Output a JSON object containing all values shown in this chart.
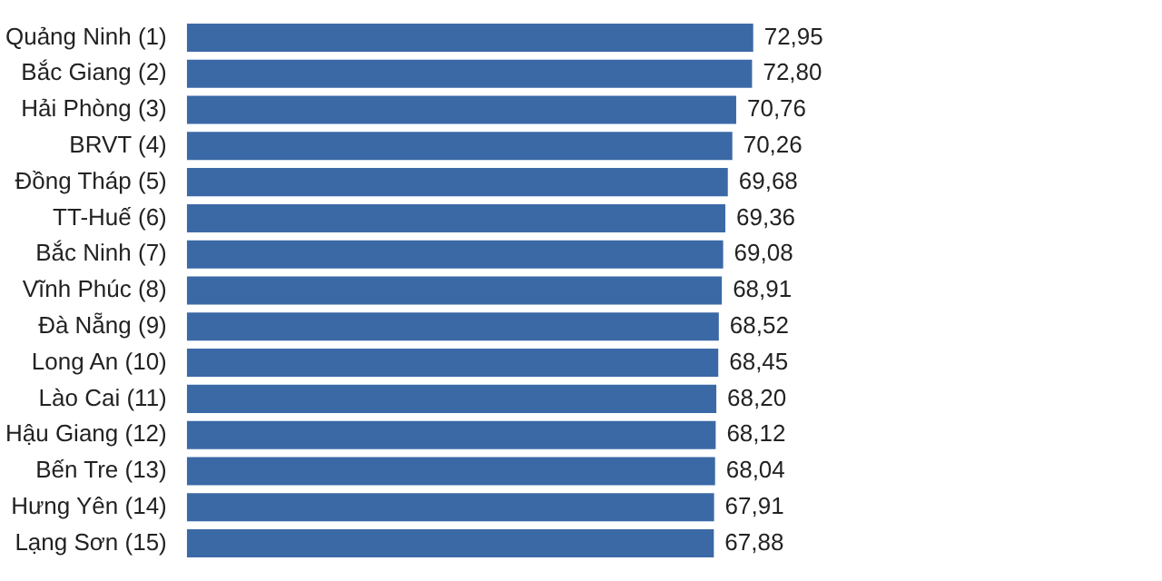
{
  "chart_data": {
    "type": "bar",
    "orientation": "horizontal",
    "categories": [
      "Quảng Ninh (1)",
      "Bắc Giang (2)",
      "Hải Phòng (3)",
      "BRVT (4)",
      "Đồng Tháp (5)",
      "TT-Huế (6)",
      "Bắc Ninh (7)",
      "Vĩnh Phúc (8)",
      "Đà Nẵng (9)",
      "Long An (10)",
      "Lào Cai (11)",
      "Hậu Giang (12)",
      "Bến Tre (13)",
      "Hưng Yên (14)",
      "Lạng Sơn (15)"
    ],
    "values": [
      72.95,
      72.8,
      70.76,
      70.26,
      69.68,
      69.36,
      69.08,
      68.91,
      68.52,
      68.45,
      68.2,
      68.12,
      68.04,
      67.91,
      67.88
    ],
    "value_labels": [
      "72,95",
      "72,80",
      "70,76",
      "70,26",
      "69,68",
      "69,36",
      "69,08",
      "68,91",
      "68,52",
      "68,45",
      "68,20",
      "68,12",
      "68,04",
      "67,91",
      "67,88"
    ],
    "color": "#3b69a6"
  }
}
